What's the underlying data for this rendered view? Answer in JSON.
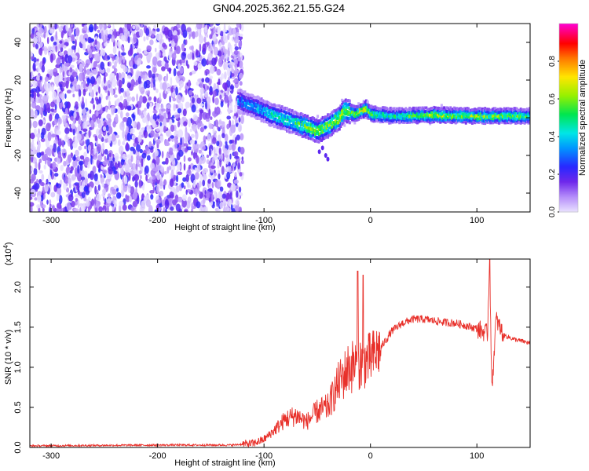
{
  "title": "GN04.2025.362.21.55.G24",
  "chart_data": [
    {
      "type": "heatmap",
      "xlabel": "Height of straight line (km)",
      "ylabel": "Frequency (Hz)",
      "xlim": [
        -320,
        150
      ],
      "ylim": [
        -50,
        50
      ],
      "xticks": [
        -300,
        -200,
        -100,
        0,
        100
      ],
      "yticks": [
        -40,
        -20,
        0,
        20,
        40
      ],
      "colorbar": {
        "label": "Normalized spectral amplitude",
        "range": [
          0,
          1
        ],
        "ticks": [
          0.0,
          0.2,
          0.4,
          0.6,
          0.8
        ]
      },
      "noise_region_x": [
        -320,
        -120
      ],
      "ridge": {
        "x": [
          -125,
          -110,
          -95,
          -80,
          -65,
          -50,
          -40,
          -30,
          -25,
          -15,
          -5,
          0,
          20,
          60,
          100,
          150
        ],
        "freq": [
          9,
          6,
          2,
          -1,
          -4,
          -7,
          -4,
          0,
          4,
          2,
          5,
          2,
          1,
          1.5,
          1,
          1
        ],
        "amplitude": [
          0.3,
          0.35,
          0.4,
          0.45,
          0.5,
          0.6,
          0.55,
          0.6,
          0.6,
          0.6,
          0.65,
          0.5,
          0.45,
          0.6,
          0.55,
          0.5
        ]
      }
    },
    {
      "type": "line",
      "xlabel": "Height of straight line (km)",
      "ylabel": "SNR (10 * v/v)",
      "y_scale_label": "(x10",
      "y_scale_exponent": "4",
      "y_scale_suffix": ")",
      "xlim": [
        -320,
        150
      ],
      "ylim": [
        0,
        2.35
      ],
      "xticks": [
        -300,
        -200,
        -100,
        0,
        100
      ],
      "yticks": [
        0.0,
        0.5,
        1.0,
        1.5,
        2.0
      ],
      "units": "x10^4",
      "series": [
        {
          "name": "SNR",
          "color": "#e8302a",
          "x": [
            -320,
            -200,
            -130,
            -110,
            -100,
            -90,
            -80,
            -70,
            -60,
            -50,
            -40,
            -30,
            -20,
            -10,
            0,
            10,
            20,
            30,
            40,
            50,
            60,
            70,
            80,
            90,
            100,
            110,
            112,
            114,
            118,
            125,
            135,
            150
          ],
          "y": [
            0.02,
            0.03,
            0.03,
            0.05,
            0.1,
            0.22,
            0.35,
            0.4,
            0.32,
            0.45,
            0.5,
            0.8,
            1.0,
            1.05,
            1.1,
            1.25,
            1.45,
            1.55,
            1.6,
            1.6,
            1.58,
            1.56,
            1.55,
            1.52,
            1.48,
            1.42,
            2.35,
            0.7,
            1.6,
            1.4,
            1.35,
            1.3
          ]
        }
      ],
      "spikes": [
        {
          "x": -12,
          "y": 2.2
        },
        {
          "x": -7,
          "y": 2.15
        },
        {
          "x": 112,
          "y": 2.35
        }
      ]
    }
  ],
  "colors": {
    "axis": "#000000",
    "line": "#e8302a"
  }
}
